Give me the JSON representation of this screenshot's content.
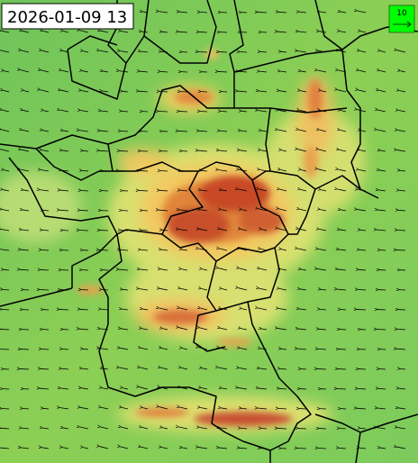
{
  "timestamp": "2026-01-09 13",
  "wind_legend": {
    "label": "10"
  }
}
